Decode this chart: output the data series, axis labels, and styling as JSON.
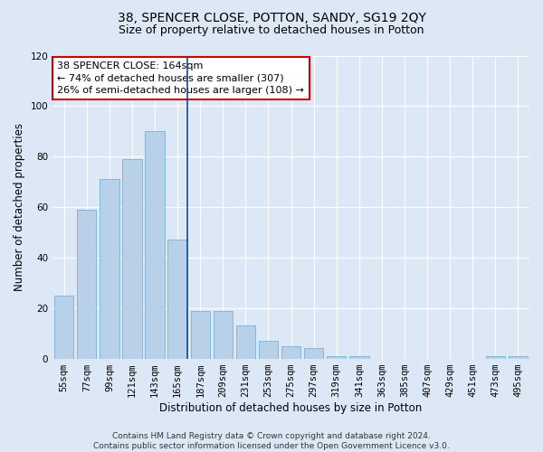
{
  "title": "38, SPENCER CLOSE, POTTON, SANDY, SG19 2QY",
  "subtitle": "Size of property relative to detached houses in Potton",
  "xlabel": "Distribution of detached houses by size in Potton",
  "ylabel": "Number of detached properties",
  "categories": [
    "55sqm",
    "77sqm",
    "99sqm",
    "121sqm",
    "143sqm",
    "165sqm",
    "187sqm",
    "209sqm",
    "231sqm",
    "253sqm",
    "275sqm",
    "297sqm",
    "319sqm",
    "341sqm",
    "363sqm",
    "385sqm",
    "407sqm",
    "429sqm",
    "451sqm",
    "473sqm",
    "495sqm"
  ],
  "values": [
    25,
    59,
    71,
    79,
    90,
    47,
    19,
    19,
    13,
    7,
    5,
    4,
    1,
    1,
    0,
    0,
    0,
    0,
    0,
    1,
    1
  ],
  "bar_color": "#b8d0e8",
  "bar_edge_color": "#7aafd4",
  "highlight_index": 5,
  "highlight_line_color": "#1a4a8a",
  "annotation_box_line1": "38 SPENCER CLOSE: 164sqm",
  "annotation_box_line2": "← 74% of detached houses are smaller (307)",
  "annotation_box_line3": "26% of semi-detached houses are larger (108) →",
  "annotation_box_color": "#ffffff",
  "annotation_box_edge_color": "#cc0000",
  "ylim": [
    0,
    120
  ],
  "yticks": [
    0,
    20,
    40,
    60,
    80,
    100,
    120
  ],
  "background_color": "#dce8f5",
  "plot_background_color": "#dce8f5",
  "grid_color": "#ffffff",
  "footer_text": "Contains HM Land Registry data © Crown copyright and database right 2024.\nContains public sector information licensed under the Open Government Licence v3.0.",
  "title_fontsize": 10,
  "subtitle_fontsize": 9,
  "xlabel_fontsize": 8.5,
  "ylabel_fontsize": 8.5,
  "tick_fontsize": 7.5,
  "annotation_fontsize": 8,
  "footer_fontsize": 6.5
}
